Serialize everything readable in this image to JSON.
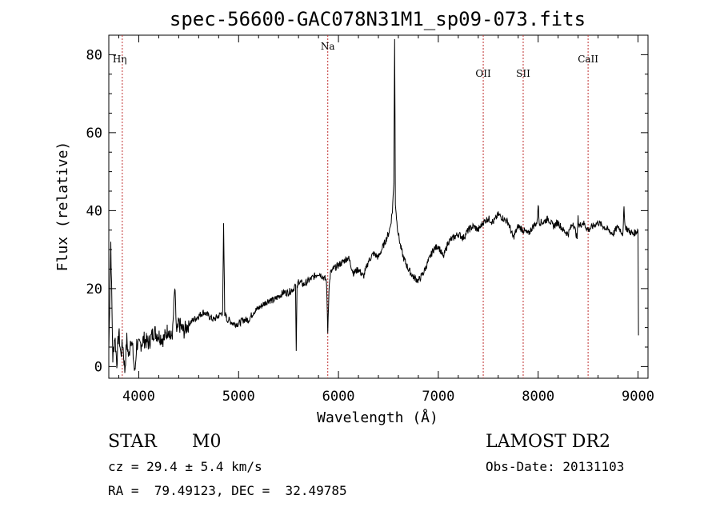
{
  "chart_data": {
    "type": "line",
    "title": "spec-56600-GAC078N31M1_sp09-073.fits",
    "xlabel": "Wavelength (Å)",
    "ylabel": "Flux (relative)",
    "xlim": [
      3700,
      9100
    ],
    "ylim": [
      -3,
      85
    ],
    "xticks": [
      4000,
      5000,
      6000,
      7000,
      8000,
      9000
    ],
    "yticks": [
      0,
      20,
      40,
      60,
      80
    ],
    "grid": false,
    "line_color": "#000000",
    "marker_color": "#c03030",
    "lines": [
      {
        "label": "Hη",
        "x": 3835
      },
      {
        "label": "Na",
        "x": 5893
      },
      {
        "label": "OII",
        "x": 7450
      },
      {
        "label": "SII",
        "x": 7850
      },
      {
        "label": "CaII",
        "x": 8500
      }
    ],
    "series": [
      {
        "x": [
          3700,
          3720,
          3740,
          3760,
          3780,
          3800,
          3820,
          3840,
          3860,
          3880,
          3900,
          3920,
          3940,
          3960,
          3980,
          4000,
          4050,
          4100,
          4150,
          4200,
          4250,
          4300,
          4320,
          4340,
          4360,
          4380,
          4400,
          4450,
          4500,
          4550,
          4600,
          4650,
          4700,
          4750,
          4800,
          4840,
          4850,
          4861,
          4870,
          4880,
          4900,
          4950,
          5000,
          5050,
          5100,
          5150,
          5200,
          5250,
          5300,
          5350,
          5400,
          5450,
          5500,
          5550,
          5570,
          5577,
          5585,
          5600,
          5650,
          5700,
          5750,
          5800,
          5850,
          5880,
          5893,
          5905,
          5920,
          5950,
          6000,
          6050,
          6100,
          6150,
          6200,
          6250,
          6300,
          6350,
          6400,
          6450,
          6500,
          6520,
          6540,
          6555,
          6563,
          6570,
          6585,
          6600,
          6620,
          6650,
          6700,
          6750,
          6800,
          6850,
          6900,
          6950,
          7000,
          7050,
          7100,
          7150,
          7200,
          7250,
          7300,
          7350,
          7400,
          7450,
          7500,
          7550,
          7600,
          7650,
          7700,
          7750,
          7800,
          7850,
          7900,
          7950,
          7990,
          8000,
          8010,
          8050,
          8100,
          8150,
          8200,
          8250,
          8300,
          8350,
          8390,
          8400,
          8410,
          8450,
          8500,
          8550,
          8600,
          8650,
          8700,
          8750,
          8800,
          8850,
          8860,
          8870,
          8900,
          8950,
          9000,
          9005
        ],
        "y": [
          4,
          32,
          2,
          8,
          1,
          9,
          3,
          6,
          -1,
          7,
          2,
          8,
          4,
          -2,
          6,
          5,
          7,
          6,
          9,
          8,
          7,
          10,
          7,
          9,
          20,
          8,
          11,
          9,
          11,
          12,
          13,
          14,
          13,
          12,
          13,
          14,
          36,
          13,
          14,
          12,
          12,
          11,
          11,
          12,
          12,
          14,
          15,
          16,
          17,
          17,
          18,
          19,
          19,
          20,
          21,
          4,
          20,
          22,
          21,
          22,
          23,
          24,
          23,
          22,
          9,
          20,
          24,
          25,
          26,
          27,
          28,
          24,
          25,
          23,
          27,
          29,
          28,
          31,
          34,
          36,
          40,
          47,
          84,
          42,
          37,
          34,
          31,
          28,
          25,
          23,
          22,
          24,
          27,
          30,
          31,
          28,
          32,
          33,
          34,
          33,
          35,
          36,
          35,
          37,
          38,
          37,
          39,
          38,
          37,
          33,
          36,
          35,
          34,
          36,
          37,
          42,
          37,
          37,
          38,
          36,
          37,
          35,
          34,
          37,
          33,
          38,
          36,
          37,
          35,
          36,
          37,
          36,
          35,
          34,
          36,
          34,
          41,
          36,
          35,
          34,
          35,
          8
        ]
      }
    ]
  },
  "info": {
    "object_class": "STAR",
    "subclass": "M0",
    "survey": "LAMOST DR2",
    "cz": "cz = 29.4 ± 5.4 km/s",
    "obs_date": "Obs-Date: 20131103",
    "coords": "RA =  79.49123, DEC =  32.49785"
  }
}
